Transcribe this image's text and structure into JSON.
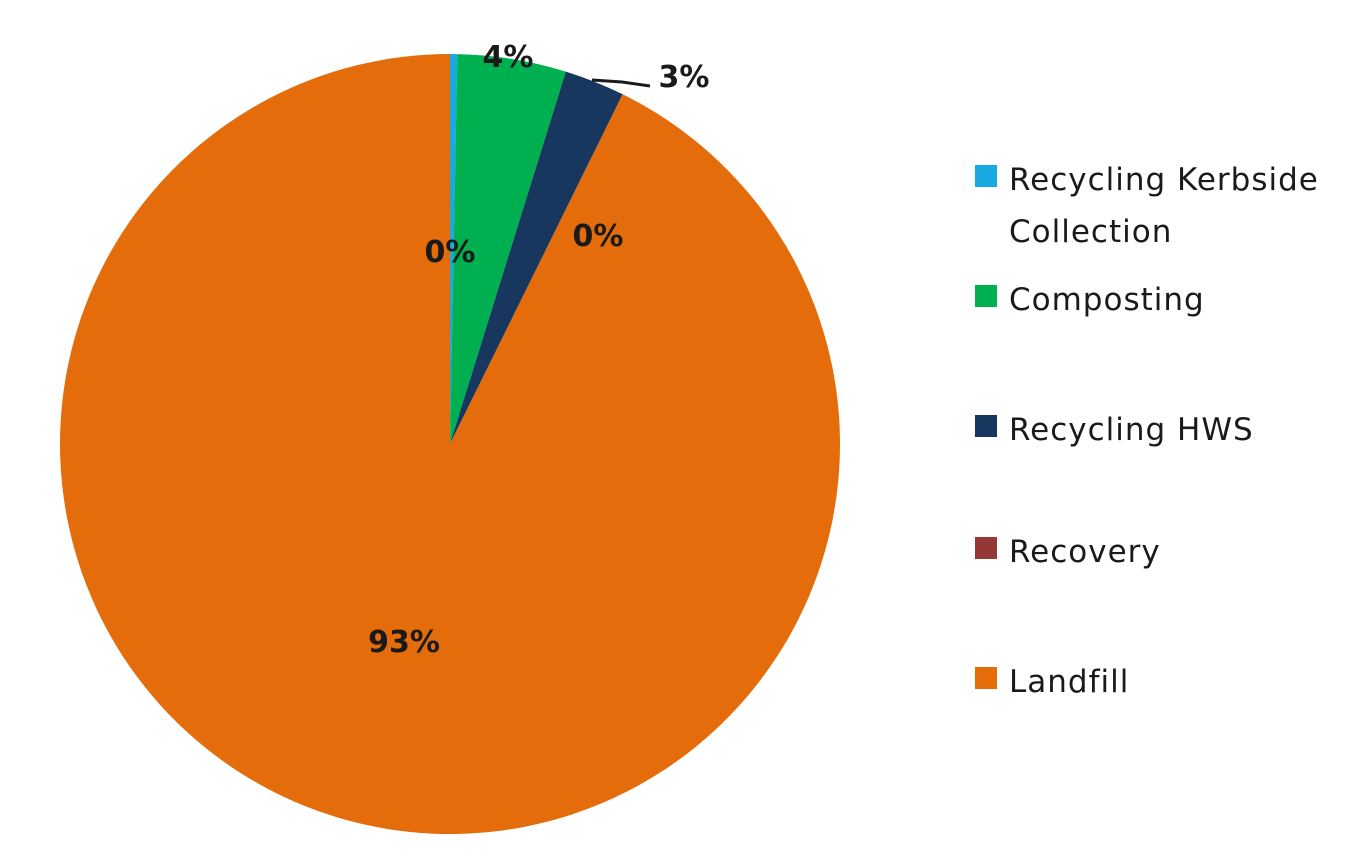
{
  "chart_data": {
    "type": "pie",
    "slices": [
      {
        "name": "Recycling Kerbside Collection",
        "value": 0.3,
        "label": "0%",
        "color": "#17a9e0"
      },
      {
        "name": "Composting",
        "value": 4.5,
        "label": "4%",
        "color": "#00b050"
      },
      {
        "name": "Recycling HWS",
        "value": 2.5,
        "label": "3%",
        "color": "#17375e"
      },
      {
        "name": "Recovery",
        "value": 0.0,
        "label": "0%",
        "color": "#953735"
      },
      {
        "name": "Landfill",
        "value": 92.7,
        "label": "93%",
        "color": "#e46c0a"
      }
    ],
    "legend": {
      "placement": "right",
      "entries": [
        {
          "lines": [
            "Recycling Kerbside",
            "Collection"
          ],
          "color": "#17a9e0"
        },
        {
          "lines": [
            "Composting"
          ],
          "color": "#00b050"
        },
        {
          "lines": [
            "Recycling HWS"
          ],
          "color": "#17375e"
        },
        {
          "lines": [
            "Recovery"
          ],
          "color": "#953735"
        },
        {
          "lines": [
            "Landfill"
          ],
          "color": "#e46c0a"
        }
      ]
    }
  }
}
